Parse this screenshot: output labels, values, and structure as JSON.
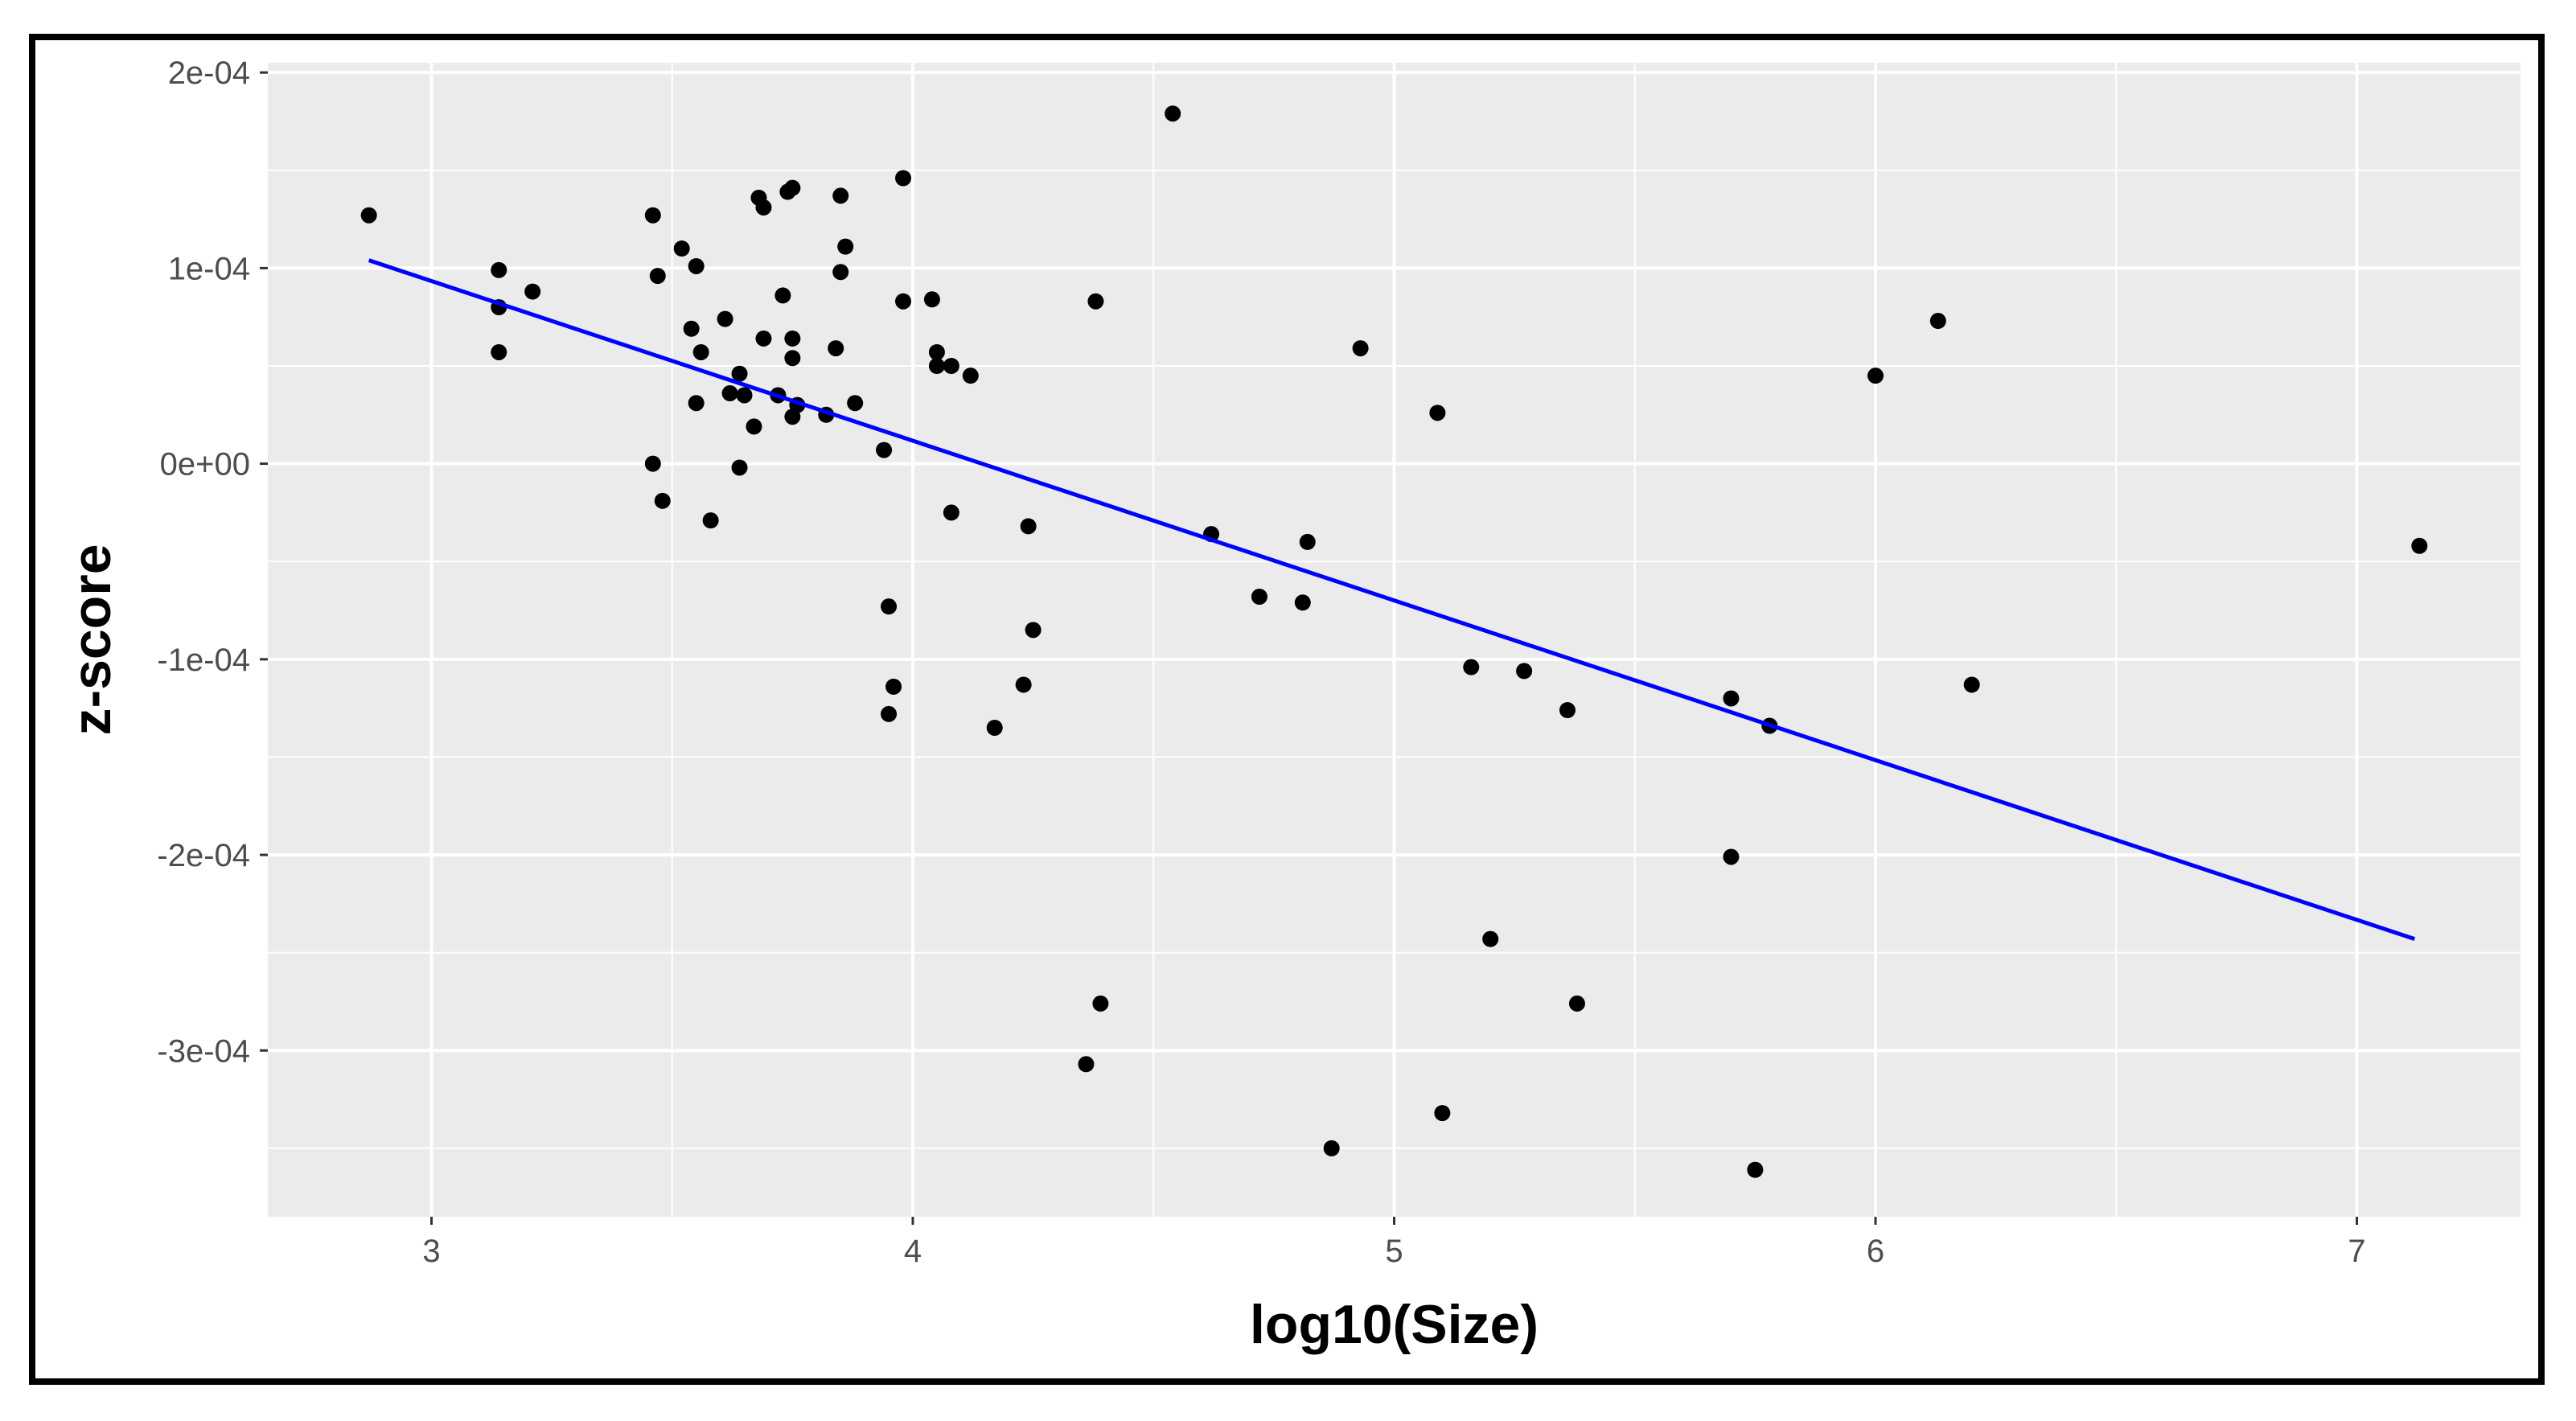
{
  "chart_data": {
    "type": "scatter",
    "title": "",
    "xlabel": "log10(Size)",
    "ylabel": "z-score",
    "xlim": [
      2.66,
      7.34
    ],
    "ylim": [
      -0.000385,
      0.000205
    ],
    "x_ticks": [
      3,
      4,
      5,
      6,
      7
    ],
    "x_tick_labels": [
      "3",
      "4",
      "5",
      "6",
      "7"
    ],
    "y_ticks": [
      -0.0003,
      -0.0002,
      -0.0001,
      0,
      0.0001,
      0.0002
    ],
    "y_tick_labels": [
      "-3e-04",
      "-2e-04",
      "-1e-04",
      "0e+00",
      "1e-04",
      "2e-04"
    ],
    "grid": true,
    "legend": "none",
    "colors": {
      "panel_background": "#ebebeb",
      "grid_line": "#ffffff",
      "points": "#000000",
      "fit_line": "#0000ff"
    },
    "points": [
      {
        "x": 2.87,
        "y": 0.000127
      },
      {
        "x": 3.14,
        "y": 9.9e-05
      },
      {
        "x": 3.14,
        "y": 8e-05
      },
      {
        "x": 3.14,
        "y": 5.7e-05
      },
      {
        "x": 3.21,
        "y": 8.8e-05
      },
      {
        "x": 3.46,
        "y": 0.000127
      },
      {
        "x": 3.47,
        "y": 9.6e-05
      },
      {
        "x": 3.46,
        "y": 0.0
      },
      {
        "x": 3.48,
        "y": -1.9e-05
      },
      {
        "x": 3.52,
        "y": 0.00011
      },
      {
        "x": 3.55,
        "y": 0.000101
      },
      {
        "x": 3.54,
        "y": 6.9e-05
      },
      {
        "x": 3.56,
        "y": 5.7e-05
      },
      {
        "x": 3.55,
        "y": 3.1e-05
      },
      {
        "x": 3.58,
        "y": -2.9e-05
      },
      {
        "x": 3.61,
        "y": 7.4e-05
      },
      {
        "x": 3.62,
        "y": 3.6e-05
      },
      {
        "x": 3.64,
        "y": 4.6e-05
      },
      {
        "x": 3.64,
        "y": -2e-06
      },
      {
        "x": 3.65,
        "y": 3.5e-05
      },
      {
        "x": 3.67,
        "y": 1.9e-05
      },
      {
        "x": 3.68,
        "y": 0.000136
      },
      {
        "x": 3.69,
        "y": 0.000131
      },
      {
        "x": 3.69,
        "y": 6.4e-05
      },
      {
        "x": 3.72,
        "y": 3.5e-05
      },
      {
        "x": 3.73,
        "y": 8.6e-05
      },
      {
        "x": 3.74,
        "y": 0.000139
      },
      {
        "x": 3.75,
        "y": 0.000141
      },
      {
        "x": 3.75,
        "y": 6.4e-05
      },
      {
        "x": 3.75,
        "y": 5.4e-05
      },
      {
        "x": 3.75,
        "y": 2.4e-05
      },
      {
        "x": 3.76,
        "y": 3e-05
      },
      {
        "x": 3.82,
        "y": 2.5e-05
      },
      {
        "x": 3.84,
        "y": 5.9e-05
      },
      {
        "x": 3.85,
        "y": 0.000137
      },
      {
        "x": 3.85,
        "y": 9.8e-05
      },
      {
        "x": 3.86,
        "y": 0.000111
      },
      {
        "x": 3.88,
        "y": 3.1e-05
      },
      {
        "x": 3.94,
        "y": 7e-06
      },
      {
        "x": 3.95,
        "y": -7.3e-05
      },
      {
        "x": 3.96,
        "y": -0.000114
      },
      {
        "x": 3.95,
        "y": -0.000128
      },
      {
        "x": 3.98,
        "y": 0.000146
      },
      {
        "x": 3.98,
        "y": 8.3e-05
      },
      {
        "x": 4.04,
        "y": 8.4e-05
      },
      {
        "x": 4.05,
        "y": 5.7e-05
      },
      {
        "x": 4.05,
        "y": 5e-05
      },
      {
        "x": 4.08,
        "y": 5e-05
      },
      {
        "x": 4.08,
        "y": -2.5e-05
      },
      {
        "x": 4.12,
        "y": 4.5e-05
      },
      {
        "x": 4.17,
        "y": -0.000135
      },
      {
        "x": 4.23,
        "y": -0.000113
      },
      {
        "x": 4.24,
        "y": -3.2e-05
      },
      {
        "x": 4.25,
        "y": -8.5e-05
      },
      {
        "x": 4.36,
        "y": -0.000307
      },
      {
        "x": 4.38,
        "y": 8.3e-05
      },
      {
        "x": 4.39,
        "y": -0.000276
      },
      {
        "x": 4.54,
        "y": 0.000179
      },
      {
        "x": 4.62,
        "y": -3.6e-05
      },
      {
        "x": 4.72,
        "y": -6.8e-05
      },
      {
        "x": 4.81,
        "y": -7.1e-05
      },
      {
        "x": 4.82,
        "y": -4e-05
      },
      {
        "x": 4.87,
        "y": -0.00035
      },
      {
        "x": 4.93,
        "y": 5.9e-05
      },
      {
        "x": 5.09,
        "y": 2.6e-05
      },
      {
        "x": 5.1,
        "y": -0.000332
      },
      {
        "x": 5.16,
        "y": -0.000104
      },
      {
        "x": 5.2,
        "y": -0.000243
      },
      {
        "x": 5.27,
        "y": -0.000106
      },
      {
        "x": 5.36,
        "y": -0.000126
      },
      {
        "x": 5.38,
        "y": -0.000276
      },
      {
        "x": 5.7,
        "y": -0.00012
      },
      {
        "x": 5.7,
        "y": -0.000201
      },
      {
        "x": 5.75,
        "y": -0.000361
      },
      {
        "x": 5.78,
        "y": -0.000134
      },
      {
        "x": 6.0,
        "y": 4.5e-05
      },
      {
        "x": 6.13,
        "y": 7.3e-05
      },
      {
        "x": 6.2,
        "y": -0.000113
      },
      {
        "x": 7.13,
        "y": -4.2e-05
      }
    ],
    "fit_line": {
      "x": [
        2.87,
        7.12
      ],
      "y": [
        0.000104,
        -0.000243
      ]
    }
  }
}
